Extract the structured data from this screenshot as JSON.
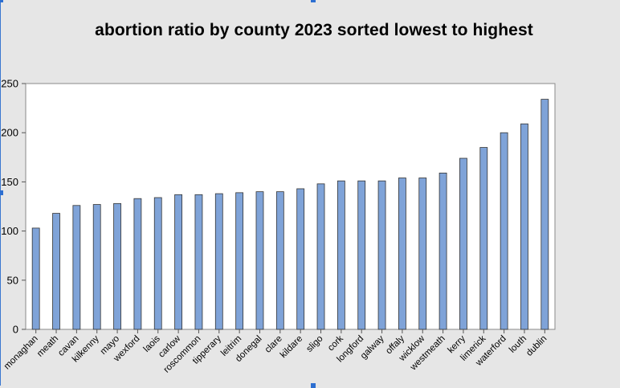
{
  "chart_data": {
    "type": "bar",
    "title": "abortion ratio by county 2023 sorted lowest to highest",
    "xlabel": "",
    "ylabel": "",
    "ylim": [
      0,
      250
    ],
    "yticks": [
      0,
      50,
      100,
      150,
      200,
      250
    ],
    "grid": false,
    "legend": "none",
    "categories": [
      "monaghan",
      "meath",
      "cavan",
      "kilkenny",
      "mayo",
      "wexford",
      "laois",
      "carlow",
      "roscommon",
      "tipperary",
      "leitrim",
      "donegal",
      "clare",
      "kildare",
      "sligo",
      "cork",
      "longford",
      "galway",
      "offaly",
      "wicklow",
      "westmeath",
      "kerry",
      "limerick",
      "waterford",
      "louth",
      "dublin"
    ],
    "values": [
      103,
      118,
      126,
      127,
      128,
      133,
      134,
      137,
      137,
      138,
      139,
      140,
      140,
      143,
      148,
      151,
      151,
      151,
      154,
      154,
      159,
      174,
      185,
      200,
      209,
      234
    ],
    "colors": {
      "bar_fill": "#7fa3d8",
      "bar_stroke": "#333333",
      "plot_bg": "#ffffff",
      "page_bg": "#e6e6e6",
      "axis": "#555555"
    }
  }
}
